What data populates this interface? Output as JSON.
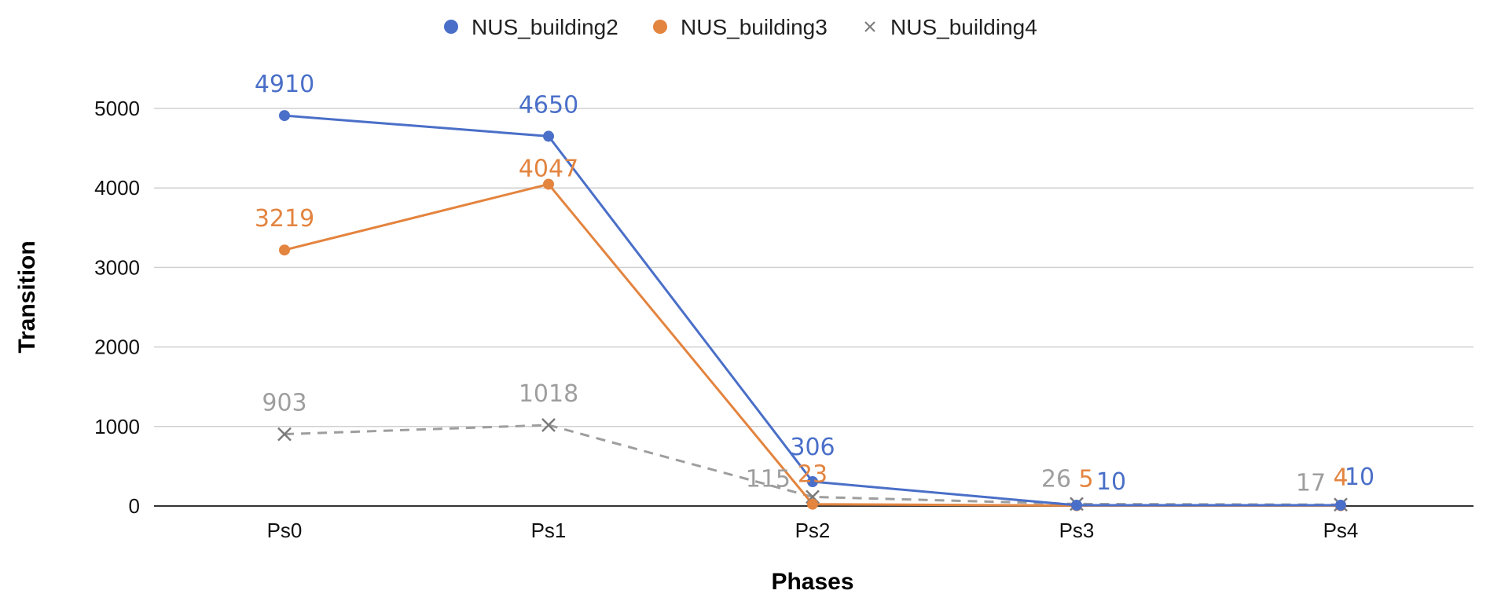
{
  "chart_data": {
    "type": "line",
    "xlabel": "Phases",
    "ylabel": "Transition",
    "categories": [
      "Ps0",
      "Ps1",
      "Ps2",
      "Ps3",
      "Ps4"
    ],
    "ylim": [
      0,
      5000
    ],
    "yticks": [
      0,
      1000,
      2000,
      3000,
      4000,
      5000
    ],
    "grid": true,
    "legend_position": "top-center",
    "series": [
      {
        "name": "NUS_building2",
        "values": [
          4910,
          4650,
          306,
          10,
          10
        ],
        "labels": [
          "4910",
          "4650",
          "306",
          "10",
          "10"
        ],
        "color": "#4a6fc8",
        "marker": "circle",
        "line_style": "solid"
      },
      {
        "name": "NUS_building3",
        "values": [
          3219,
          4047,
          23,
          5,
          4
        ],
        "labels": [
          "3219",
          "4047",
          "23",
          "5",
          "4"
        ],
        "color": "#e3843f",
        "marker": "circle",
        "line_style": "solid"
      },
      {
        "name": "NUS_building4",
        "values": [
          903,
          1018,
          115,
          26,
          17
        ],
        "labels": [
          "903",
          "1018",
          "115",
          "26",
          "17"
        ],
        "color": "#9e9e9e",
        "marker": "cross",
        "line_style": "dashed"
      }
    ]
  }
}
